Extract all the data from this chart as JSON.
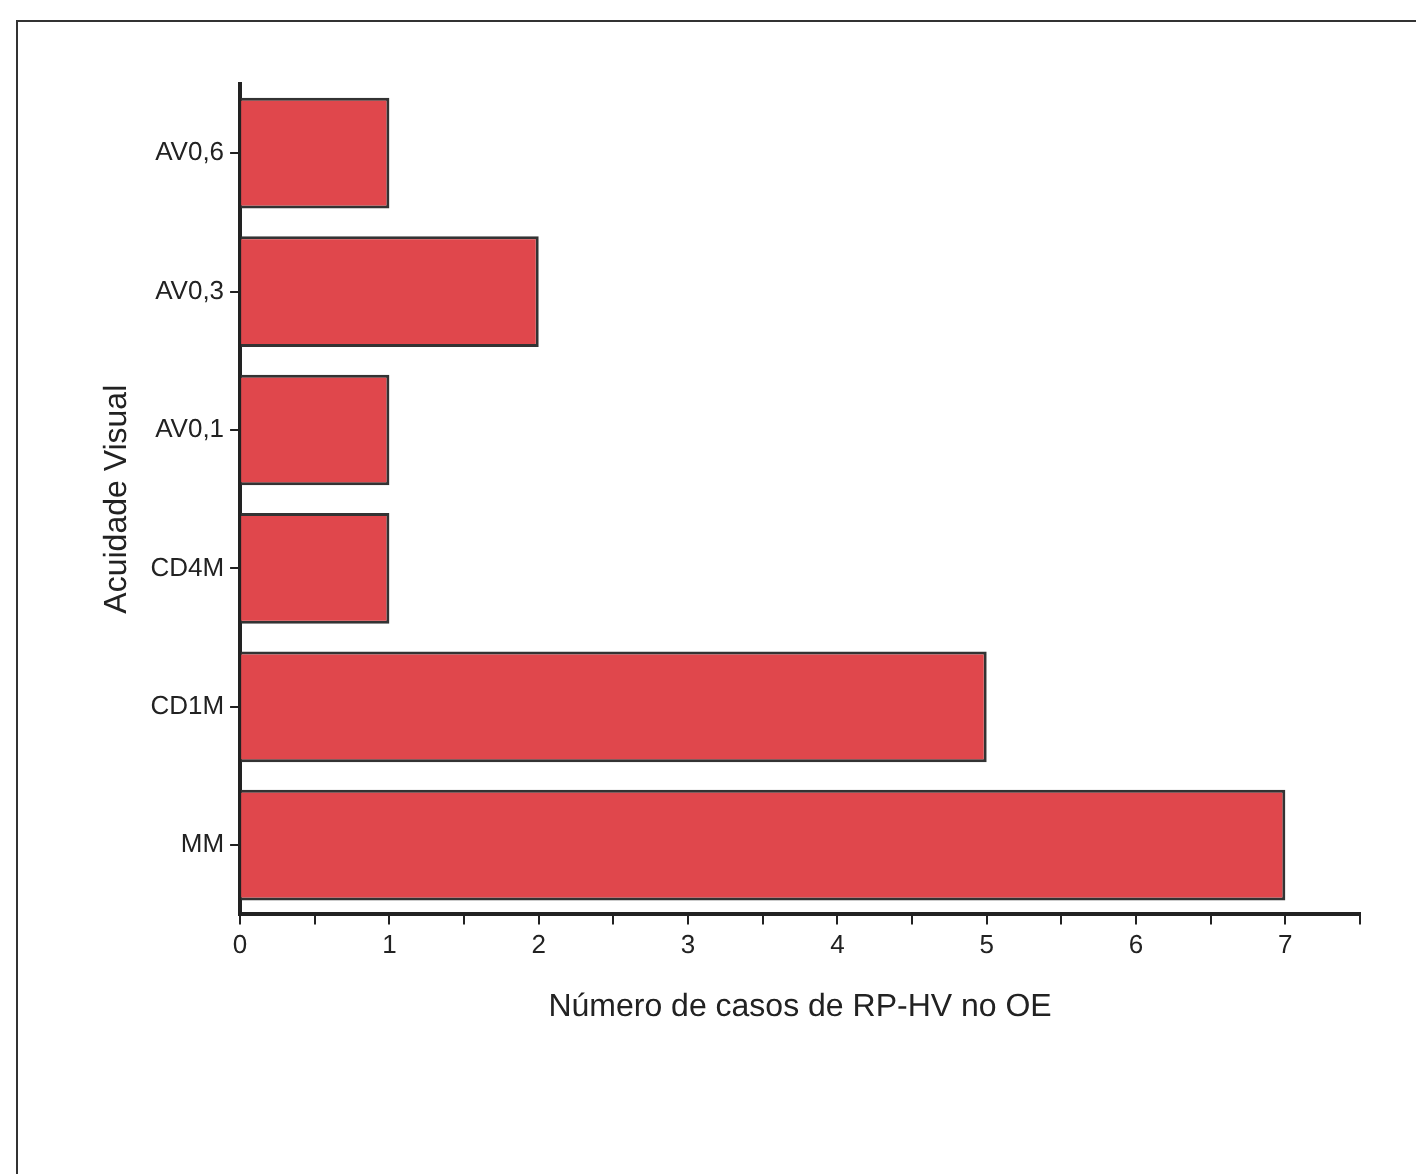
{
  "chart_data": {
    "type": "bar",
    "orientation": "horizontal",
    "xlabel": "Número de casos de RP-HV no OE",
    "ylabel": "Acuidade Visual",
    "categories": [
      "AV0,6",
      "AV0,3",
      "AV0,1",
      "CD4M",
      "CD1M",
      "MM"
    ],
    "values": [
      1,
      2,
      1,
      1,
      5,
      7
    ],
    "color": "#e0474c",
    "xlim": [
      0,
      7.5
    ],
    "xticks": [
      0,
      {
        "value": 0.5,
        "label": null
      },
      1,
      {
        "value": 1.5,
        "label": null
      },
      2,
      {
        "value": 2.5,
        "label": null
      },
      3,
      {
        "value": 3.5,
        "label": null
      },
      4,
      {
        "value": 4.5,
        "label": null
      },
      5,
      {
        "value": 5.5,
        "label": null
      },
      6,
      {
        "value": 6.5,
        "label": null
      },
      7,
      {
        "value": 7.5,
        "label": null
      }
    ],
    "grid": false,
    "legend": false
  }
}
